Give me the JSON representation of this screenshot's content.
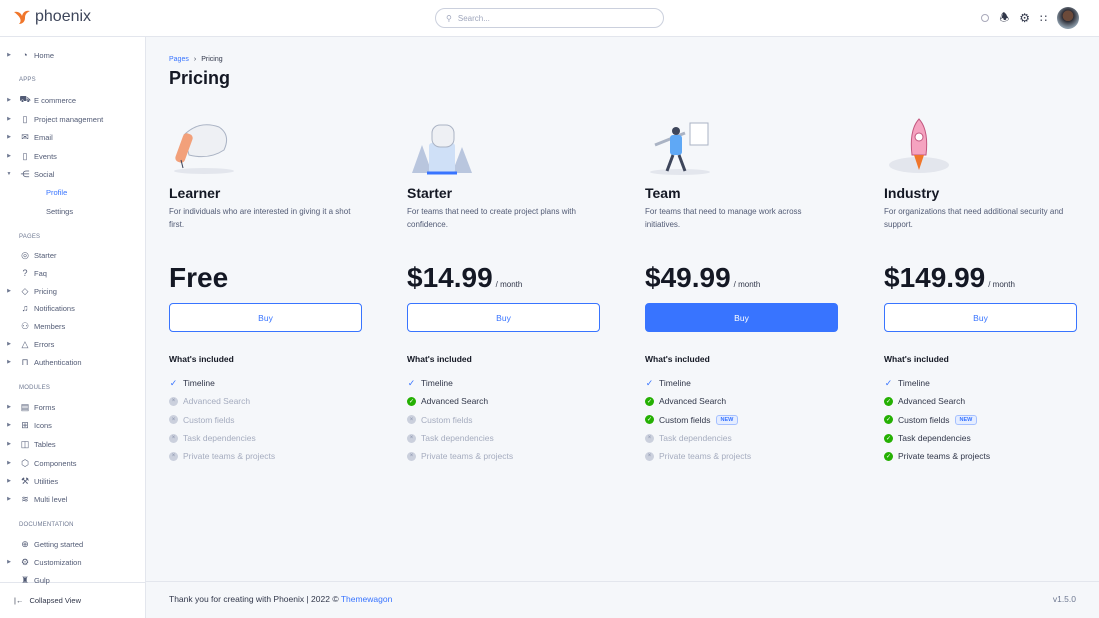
{
  "app": {
    "name": "phoenix"
  },
  "search": {
    "placeholder": "Search..."
  },
  "sidebar": {
    "items": [
      {
        "label": "Home",
        "icon": "pie-chart-icon",
        "caret": true
      },
      {
        "label": "E commerce",
        "icon": "cart-icon",
        "caret": true
      },
      {
        "label": "Project management",
        "icon": "clipboard-icon",
        "caret": true
      },
      {
        "label": "Email",
        "icon": "mail-icon",
        "caret": true
      },
      {
        "label": "Events",
        "icon": "clipboard-icon",
        "caret": true
      },
      {
        "label": "Social",
        "icon": "share-icon",
        "caret": true
      },
      {
        "label": "Starter",
        "icon": "compass-icon",
        "caret": false
      },
      {
        "label": "Faq",
        "icon": "help-icon",
        "caret": false
      },
      {
        "label": "Pricing",
        "icon": "tag-icon",
        "caret": true
      },
      {
        "label": "Notifications",
        "icon": "bell-icon",
        "caret": false
      },
      {
        "label": "Members",
        "icon": "users-icon",
        "caret": false
      },
      {
        "label": "Errors",
        "icon": "alert-icon",
        "caret": true
      },
      {
        "label": "Authentication",
        "icon": "lock-icon",
        "caret": true
      },
      {
        "label": "Forms",
        "icon": "file-icon",
        "caret": true
      },
      {
        "label": "Icons",
        "icon": "grid-icon",
        "caret": true
      },
      {
        "label": "Tables",
        "icon": "columns-icon",
        "caret": true
      },
      {
        "label": "Components",
        "icon": "package-icon",
        "caret": true
      },
      {
        "label": "Utilities",
        "icon": "tool-icon",
        "caret": true
      },
      {
        "label": "Multi level",
        "icon": "layers-icon",
        "caret": true
      },
      {
        "label": "Getting started",
        "icon": "life-buoy-icon",
        "caret": false
      },
      {
        "label": "Customization",
        "icon": "settings-icon",
        "caret": true
      },
      {
        "label": "Gulp",
        "icon": "gulp-icon",
        "caret": false
      }
    ],
    "sections": [
      "APPS",
      "PAGES",
      "MODULES",
      "DOCUMENTATION"
    ],
    "social_sub": [
      "Profile",
      "Settings"
    ],
    "collapse": "Collapsed View"
  },
  "breadcrumb": [
    "Pages",
    "Pricing"
  ],
  "page_title": "Pricing",
  "plans": [
    {
      "name": "Learner",
      "desc": "For individuals who are interested in giving it a shot first.",
      "price": "Free",
      "period": "",
      "buy": "Buy",
      "primary": false,
      "features": [
        true,
        false,
        false,
        false,
        false
      ]
    },
    {
      "name": "Starter",
      "desc": "For teams that need to create project plans with confidence.",
      "price": "$14.99",
      "period": "/ month",
      "buy": "Buy",
      "primary": false,
      "features": [
        true,
        true,
        false,
        false,
        false
      ]
    },
    {
      "name": "Team",
      "desc": "For teams that need to manage work across initiatives.",
      "price": "$49.99",
      "period": "/ month",
      "buy": "Buy",
      "primary": true,
      "features": [
        true,
        true,
        true,
        false,
        false
      ]
    },
    {
      "name": "Industry",
      "desc": "For organizations that need additional security and support.",
      "price": "$149.99",
      "period": "/ month",
      "buy": "Buy",
      "primary": false,
      "features": [
        true,
        true,
        true,
        true,
        true
      ]
    }
  ],
  "included_label": "What's included",
  "feature_names": [
    "Timeline",
    "Advanced Search",
    "Custom fields",
    "Task dependencies",
    "Private teams & projects"
  ],
  "new_badge": "NEW",
  "footer": {
    "text": "Thank you for creating with Phoenix | 2022 ©",
    "link": "Themewagon",
    "version": "v1.5.0"
  },
  "colors": {
    "accent": "#3874ff",
    "success": "#25b003",
    "logo": "#f0762b"
  }
}
